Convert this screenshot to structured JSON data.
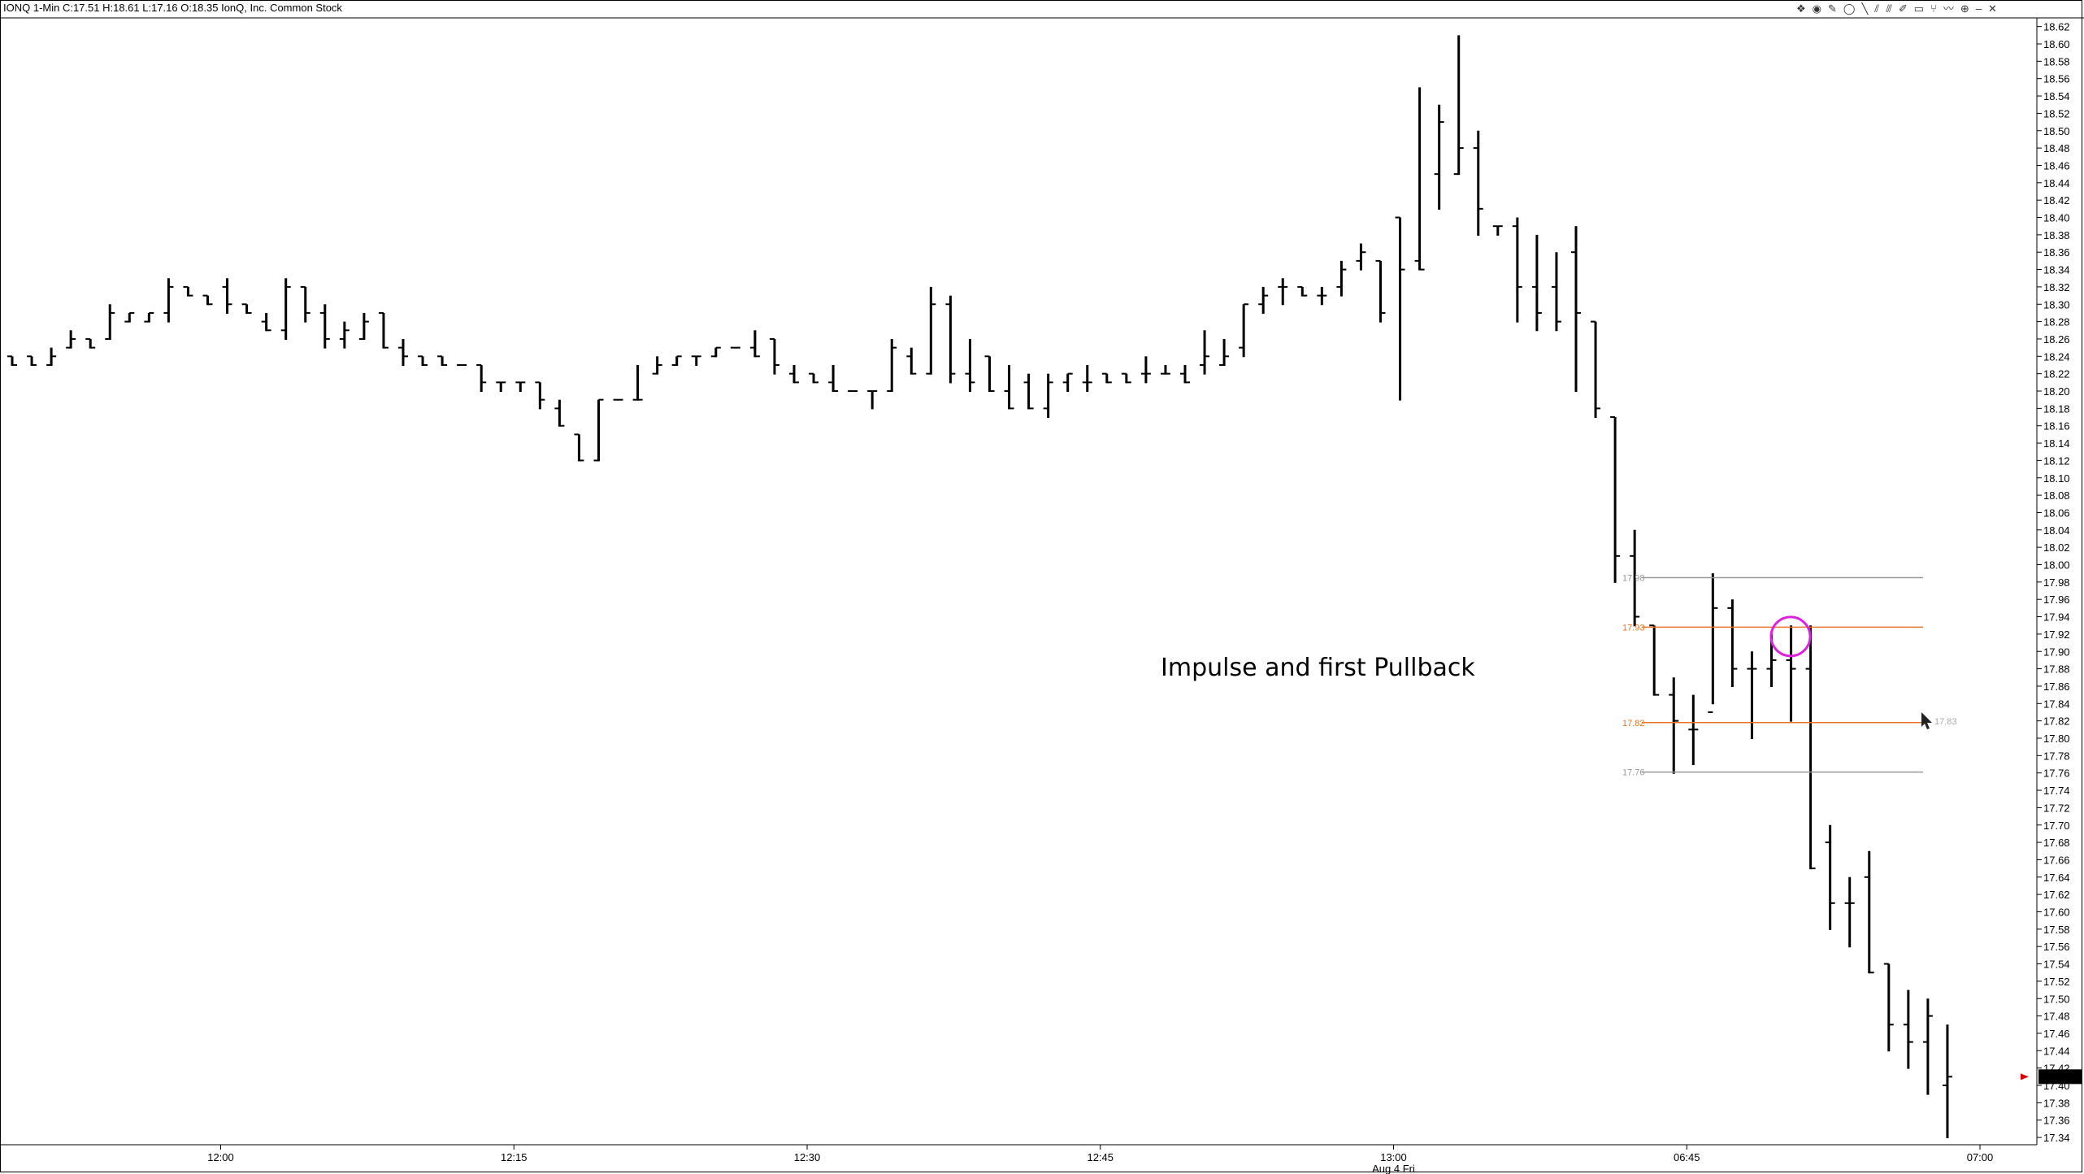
{
  "window": {
    "title": "IONQ 1-Min C:17.51 H:18.61 L:17.16 O:18.35 IonQ, Inc. Common Stock"
  },
  "toolbar": {
    "icons": [
      "puzzle-icon",
      "globe-icon",
      "pencil-icon",
      "circle-icon",
      "line-icon",
      "channel-icon",
      "fib-icon",
      "brush-icon",
      "rectangle-icon",
      "pitchfork-icon",
      "zigzag-icon",
      "shapes-icon",
      "minus-icon",
      "close-icon"
    ],
    "glyphs": [
      "❖",
      "◉",
      "✎",
      "◯",
      "╲",
      "⫽",
      "⫻",
      "✐",
      "▭",
      "⑂",
      "〰",
      "⊕",
      "–",
      "✕"
    ]
  },
  "annotation": {
    "text": "Impulse and first Pullback"
  },
  "cursor_readout": "17.83",
  "chart_data": {
    "type": "ohlc",
    "symbol": "IONQ",
    "interval": "1-Min",
    "ylim": [
      17.33,
      18.63
    ],
    "y_ticks": [
      "18.62",
      "18.60",
      "18.58",
      "18.56",
      "18.54",
      "18.52",
      "18.50",
      "18.48",
      "18.46",
      "18.44",
      "18.42",
      "18.40",
      "18.38",
      "18.36",
      "18.34",
      "18.32",
      "18.30",
      "18.28",
      "18.26",
      "18.24",
      "18.22",
      "18.20",
      "18.18",
      "18.16",
      "18.14",
      "18.12",
      "18.10",
      "18.08",
      "18.06",
      "18.04",
      "18.02",
      "18.00",
      "17.98",
      "17.96",
      "17.94",
      "17.92",
      "17.90",
      "17.88",
      "17.86",
      "17.84",
      "17.82",
      "17.80",
      "17.78",
      "17.76",
      "17.74",
      "17.72",
      "17.70",
      "17.68",
      "17.66",
      "17.64",
      "17.62",
      "17.60",
      "17.58",
      "17.56",
      "17.54",
      "17.52",
      "17.50",
      "17.48",
      "17.46",
      "17.44",
      "17.42",
      "17.40",
      "17.38",
      "17.36",
      "17.34"
    ],
    "x_ticks": [
      {
        "label": "12:00",
        "bar": 10
      },
      {
        "label": "12:15",
        "bar": 25
      },
      {
        "label": "12:30",
        "bar": 40
      },
      {
        "label": "12:45",
        "bar": 55
      },
      {
        "label": "13:00",
        "bar": 70
      },
      {
        "label": "06:45",
        "bar": 85
      },
      {
        "label": "07:00",
        "bar": 100
      }
    ],
    "date_label": "Aug 4 Fri",
    "last_price": "17.41",
    "bars": [
      [
        18.24,
        18.24,
        18.23,
        18.23
      ],
      [
        18.24,
        18.24,
        18.23,
        18.23
      ],
      [
        18.23,
        18.25,
        18.23,
        18.24
      ],
      [
        18.25,
        18.27,
        18.25,
        18.26
      ],
      [
        18.26,
        18.26,
        18.25,
        18.25
      ],
      [
        18.26,
        18.3,
        18.26,
        18.29
      ],
      [
        18.28,
        18.29,
        18.28,
        18.29
      ],
      [
        18.28,
        18.29,
        18.28,
        18.29
      ],
      [
        18.29,
        18.33,
        18.28,
        18.32
      ],
      [
        18.32,
        18.32,
        18.31,
        18.31
      ],
      [
        18.31,
        18.31,
        18.3,
        18.3
      ],
      [
        18.32,
        18.33,
        18.29,
        18.3
      ],
      [
        18.3,
        18.3,
        18.29,
        18.29
      ],
      [
        18.28,
        18.29,
        18.27,
        18.27
      ],
      [
        18.27,
        18.33,
        18.26,
        18.32
      ],
      [
        18.32,
        18.32,
        18.28,
        18.29
      ],
      [
        18.29,
        18.3,
        18.25,
        18.26
      ],
      [
        18.26,
        18.28,
        18.25,
        18.27
      ],
      [
        18.26,
        18.29,
        18.26,
        18.28
      ],
      [
        18.29,
        18.29,
        18.25,
        18.25
      ],
      [
        18.25,
        18.26,
        18.23,
        18.24
      ],
      [
        18.24,
        18.24,
        18.23,
        18.23
      ],
      [
        18.24,
        18.24,
        18.23,
        18.23
      ],
      [
        18.23,
        18.23,
        18.23,
        18.23
      ],
      [
        18.23,
        18.23,
        18.2,
        18.21
      ],
      [
        18.21,
        18.21,
        18.2,
        18.21
      ],
      [
        18.21,
        18.21,
        18.2,
        18.21
      ],
      [
        18.21,
        18.21,
        18.18,
        18.19
      ],
      [
        18.18,
        18.19,
        18.16,
        18.16
      ],
      [
        18.15,
        18.15,
        18.12,
        18.12
      ],
      [
        18.12,
        18.19,
        18.12,
        18.19
      ],
      [
        18.19,
        18.19,
        18.19,
        18.19
      ],
      [
        18.19,
        18.23,
        18.19,
        18.19
      ],
      [
        18.22,
        18.24,
        18.22,
        18.23
      ],
      [
        18.23,
        18.24,
        18.23,
        18.24
      ],
      [
        18.24,
        18.24,
        18.23,
        18.24
      ],
      [
        18.24,
        18.25,
        18.24,
        18.25
      ],
      [
        18.25,
        18.25,
        18.25,
        18.25
      ],
      [
        18.25,
        18.27,
        18.24,
        18.24
      ],
      [
        18.26,
        18.26,
        18.22,
        18.23
      ],
      [
        18.22,
        18.23,
        18.21,
        18.21
      ],
      [
        18.22,
        18.22,
        18.21,
        18.21
      ],
      [
        18.21,
        18.23,
        18.2,
        18.2
      ],
      [
        18.2,
        18.2,
        18.2,
        18.2
      ],
      [
        18.2,
        18.2,
        18.18,
        18.2
      ],
      [
        18.2,
        18.26,
        18.2,
        18.25
      ],
      [
        18.24,
        18.25,
        18.22,
        18.22
      ],
      [
        18.22,
        18.32,
        18.22,
        18.3
      ],
      [
        18.3,
        18.31,
        18.21,
        18.22
      ],
      [
        18.22,
        18.26,
        18.2,
        18.21
      ],
      [
        18.24,
        18.24,
        18.2,
        18.2
      ],
      [
        18.2,
        18.23,
        18.18,
        18.18
      ],
      [
        18.21,
        18.22,
        18.18,
        18.18
      ],
      [
        18.18,
        18.22,
        18.17,
        18.21
      ],
      [
        18.21,
        18.22,
        18.2,
        18.22
      ],
      [
        18.21,
        18.23,
        18.2,
        18.21
      ],
      [
        18.22,
        18.22,
        18.21,
        18.21
      ],
      [
        18.22,
        18.22,
        18.21,
        18.21
      ],
      [
        18.22,
        18.24,
        18.21,
        18.22
      ],
      [
        18.22,
        18.23,
        18.22,
        18.22
      ],
      [
        18.22,
        18.23,
        18.21,
        18.21
      ],
      [
        18.23,
        18.27,
        18.22,
        18.24
      ],
      [
        18.23,
        18.26,
        18.23,
        18.24
      ],
      [
        18.25,
        18.3,
        18.24,
        18.3
      ],
      [
        18.3,
        18.32,
        18.29,
        18.31
      ],
      [
        18.32,
        18.33,
        18.3,
        18.32
      ],
      [
        18.32,
        18.32,
        18.31,
        18.31
      ],
      [
        18.31,
        18.32,
        18.3,
        18.31
      ],
      [
        18.32,
        18.35,
        18.31,
        18.34
      ],
      [
        18.35,
        18.37,
        18.34,
        18.36
      ],
      [
        18.35,
        18.35,
        18.28,
        18.29
      ],
      [
        18.4,
        18.4,
        18.19,
        18.34
      ],
      [
        18.35,
        18.55,
        18.34,
        18.34
      ],
      [
        18.45,
        18.53,
        18.41,
        18.51
      ],
      [
        18.45,
        18.61,
        18.45,
        18.48
      ],
      [
        18.48,
        18.5,
        18.38,
        18.41
      ],
      [
        18.39,
        18.39,
        18.38,
        18.39
      ],
      [
        18.39,
        18.4,
        18.28,
        18.32
      ],
      [
        18.32,
        18.38,
        18.27,
        18.29
      ],
      [
        18.32,
        18.36,
        18.27,
        18.28
      ],
      [
        18.36,
        18.39,
        18.2,
        18.29
      ],
      [
        18.28,
        18.28,
        18.17,
        18.18
      ],
      [
        18.17,
        18.17,
        17.98,
        18.01
      ],
      [
        18.01,
        18.04,
        17.93,
        17.94
      ],
      [
        17.93,
        17.93,
        17.85,
        17.85
      ],
      [
        17.85,
        17.87,
        17.76,
        17.82
      ],
      [
        17.81,
        17.85,
        17.77,
        17.81
      ],
      [
        17.83,
        17.99,
        17.84,
        17.95
      ],
      [
        17.95,
        17.96,
        17.86,
        17.88
      ],
      [
        17.88,
        17.9,
        17.8,
        17.88
      ],
      [
        17.88,
        17.92,
        17.86,
        17.89
      ],
      [
        17.89,
        17.93,
        17.82,
        17.88
      ],
      [
        17.88,
        17.93,
        17.65,
        17.65
      ],
      [
        17.68,
        17.7,
        17.58,
        17.61
      ],
      [
        17.61,
        17.64,
        17.56,
        17.61
      ],
      [
        17.64,
        17.67,
        17.53,
        17.53
      ],
      [
        17.54,
        17.54,
        17.44,
        17.47
      ],
      [
        17.47,
        17.51,
        17.42,
        17.45
      ],
      [
        17.45,
        17.5,
        17.39,
        17.48
      ],
      [
        17.4,
        17.47,
        17.34,
        17.41
      ]
    ],
    "fib_levels": [
      {
        "label": "17.98",
        "price": 17.985,
        "color": "#999999"
      },
      {
        "label": "17.93",
        "price": 17.928,
        "color": "#e8742a"
      },
      {
        "label": "17.82",
        "price": 17.818,
        "color": "#e8742a"
      },
      {
        "label": "17.76",
        "price": 17.761,
        "color": "#999999"
      }
    ],
    "highlight_circle_price": 17.92,
    "colors": {
      "bars": "#000000",
      "fib_orange": "#e8742a",
      "fib_gray": "#999999",
      "circle": "#e020e0",
      "last_price_arrow": "#e00000"
    }
  }
}
